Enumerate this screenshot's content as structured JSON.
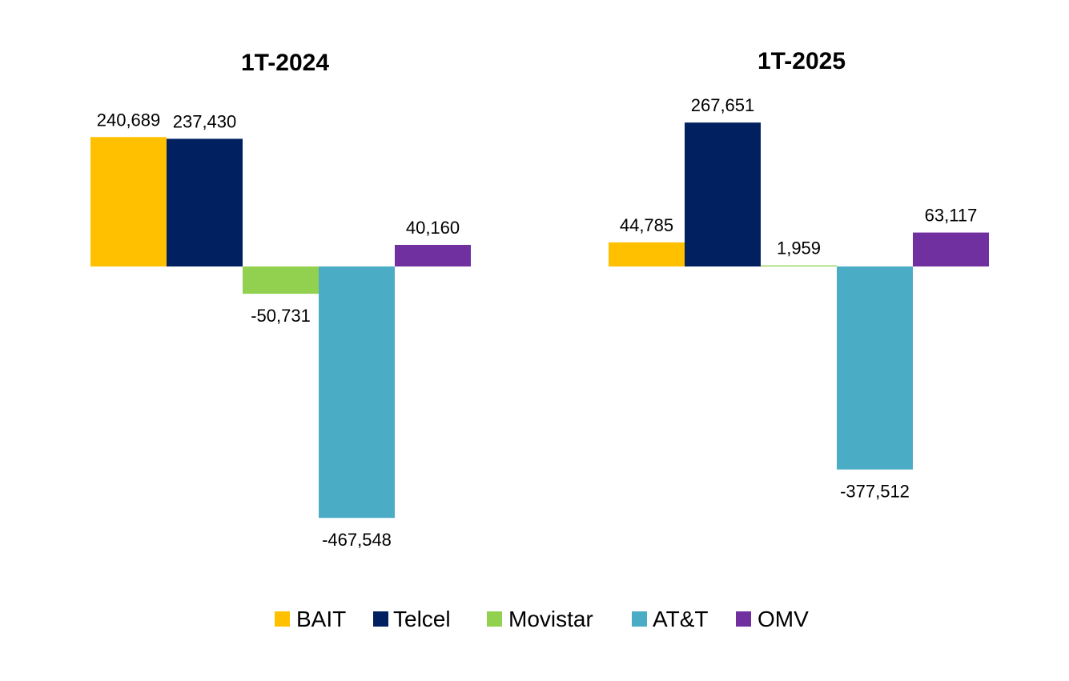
{
  "chart_data": [
    {
      "type": "bar",
      "title": "1T-2024",
      "categories": [
        "BAIT",
        "Telcel",
        "Movistar",
        "AT&T",
        "OMV"
      ],
      "values": [
        240689,
        237430,
        -50731,
        -467548,
        40160
      ],
      "labels": [
        "240,689",
        "237,430",
        "-50,731",
        "-467,548",
        "40,160"
      ],
      "xlabel": "",
      "ylabel": "",
      "ylim": [
        -500000,
        300000
      ],
      "grid": false
    },
    {
      "type": "bar",
      "title": "1T-2025",
      "categories": [
        "BAIT",
        "Telcel",
        "Movistar",
        "AT&T",
        "OMV"
      ],
      "values": [
        44785,
        267651,
        1959,
        -377512,
        63117
      ],
      "labels": [
        "44,785",
        "267,651",
        "1,959",
        "-377,512",
        "63,117"
      ],
      "xlabel": "",
      "ylabel": "",
      "ylim": [
        -500000,
        300000
      ],
      "grid": false
    }
  ],
  "legend": {
    "position": "bottom",
    "items": [
      {
        "label": "BAIT",
        "color": "#FFC000"
      },
      {
        "label": "Telcel",
        "color": "#002060"
      },
      {
        "label": "Movistar",
        "color": "#92D050"
      },
      {
        "label": "AT&T",
        "color": "#4BACC6"
      },
      {
        "label": "OMV",
        "color": "#7030A0"
      }
    ]
  }
}
